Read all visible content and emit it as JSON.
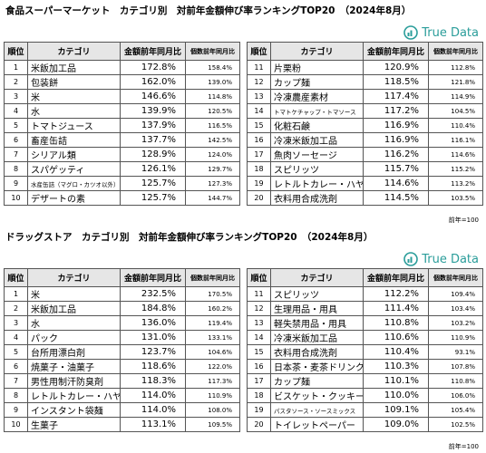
{
  "sections": [
    {
      "title": "食品スーパーマーケット　カテゴリ別　対前年金額伸び率ランキングTOP20　（2024年8月）",
      "logo": "True Data",
      "headers": [
        "順位",
        "カテゴリ",
        "金額前年同月比",
        "個数前年同月比"
      ],
      "tables": [
        {
          "rows": [
            [
              "1",
              "米飯加工品",
              "172.8%",
              "158.4%"
            ],
            [
              "2",
              "包装餅",
              "162.0%",
              "139.0%"
            ],
            [
              "3",
              "米",
              "146.6%",
              "114.8%"
            ],
            [
              "4",
              "水",
              "139.9%",
              "120.5%"
            ],
            [
              "5",
              "トマトジュース",
              "137.9%",
              "116.5%"
            ],
            [
              "6",
              "畜産缶詰",
              "137.7%",
              "142.5%"
            ],
            [
              "7",
              "シリアル類",
              "128.9%",
              "124.0%"
            ],
            [
              "8",
              "スパゲッティ",
              "126.1%",
              "129.7%"
            ],
            [
              "9",
              "水産缶詰（マグロ・カツオ以外）",
              "125.7%",
              "127.3%"
            ],
            [
              "10",
              "デザートの素",
              "125.7%",
              "144.7%"
            ]
          ]
        },
        {
          "rows": [
            [
              "11",
              "片栗粉",
              "120.9%",
              "112.8%"
            ],
            [
              "12",
              "カップ麺",
              "118.5%",
              "121.8%"
            ],
            [
              "13",
              "冷凍農産素材",
              "117.4%",
              "114.9%"
            ],
            [
              "14",
              "トマトケチャップ・トマソース",
              "117.2%",
              "104.5%"
            ],
            [
              "15",
              "化粧石鹸",
              "116.9%",
              "110.4%"
            ],
            [
              "16",
              "冷凍米飯加工品",
              "116.9%",
              "116.1%"
            ],
            [
              "17",
              "魚肉ソーセージ",
              "116.2%",
              "114.6%"
            ],
            [
              "18",
              "スピリッツ",
              "115.7%",
              "115.2%"
            ],
            [
              "19",
              "レトルトカレー・ハヤシ",
              "114.6%",
              "113.2%"
            ],
            [
              "20",
              "衣料用合成洗剤",
              "114.5%",
              "103.5%"
            ]
          ]
        }
      ],
      "note": "前年=100"
    },
    {
      "title": "ドラッグストア　カテゴリ別　対前年金額伸び率ランキングTOP20　（2024年8月）",
      "logo": "True Data",
      "headers": [
        "順位",
        "カテゴリ",
        "金額前年同月比",
        "個数前年同月比"
      ],
      "tables": [
        {
          "rows": [
            [
              "1",
              "米",
              "232.5%",
              "170.5%"
            ],
            [
              "2",
              "米飯加工品",
              "184.8%",
              "160.2%"
            ],
            [
              "3",
              "水",
              "136.0%",
              "119.4%"
            ],
            [
              "4",
              "パック",
              "131.0%",
              "133.1%"
            ],
            [
              "5",
              "台所用漂白剤",
              "123.7%",
              "104.6%"
            ],
            [
              "6",
              "焼菓子・油菓子",
              "118.6%",
              "122.0%"
            ],
            [
              "7",
              "男性用制汗防臭剤",
              "118.3%",
              "117.3%"
            ],
            [
              "8",
              "レトルトカレー・ハヤシ",
              "114.0%",
              "110.9%"
            ],
            [
              "9",
              "インスタント袋麺",
              "114.0%",
              "108.0%"
            ],
            [
              "10",
              "生菓子",
              "113.1%",
              "109.5%"
            ]
          ]
        },
        {
          "rows": [
            [
              "11",
              "スピリッツ",
              "112.2%",
              "109.4%"
            ],
            [
              "12",
              "生理用品・用具",
              "111.4%",
              "103.4%"
            ],
            [
              "13",
              "軽失禁用品・用具",
              "110.8%",
              "103.2%"
            ],
            [
              "14",
              "冷凍米飯加工品",
              "110.6%",
              "110.9%"
            ],
            [
              "15",
              "衣料用合成洗剤",
              "110.4%",
              "93.1%"
            ],
            [
              "16",
              "日本茶・麦茶ドリンク",
              "110.3%",
              "107.8%"
            ],
            [
              "17",
              "カップ麺",
              "110.1%",
              "110.8%"
            ],
            [
              "18",
              "ビスケット・クッキー",
              "110.0%",
              "106.0%"
            ],
            [
              "19",
              "パスタソース・ソースミックス",
              "109.1%",
              "105.4%"
            ],
            [
              "20",
              "トイレットペーパー",
              "109.0%",
              "102.5%"
            ]
          ]
        }
      ],
      "note": "前年=100"
    }
  ]
}
